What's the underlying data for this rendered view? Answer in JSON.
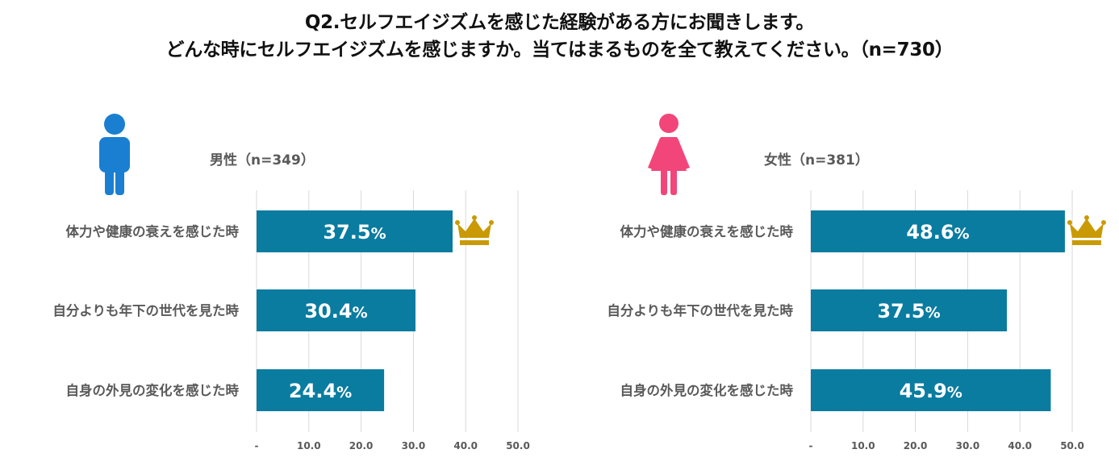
{
  "title": {
    "line1": "Q2.セルフエイジズムを感じた経験がある方にお聞きします。",
    "line2": "どんな時にセルフエイジズムを感じますか。当てはまるものを全て教えてください。（n=730）"
  },
  "colors": {
    "bar": "#0a7ca0",
    "male_icon": "#1a7fd0",
    "female_icon": "#f2467a",
    "crown": "#c99a06",
    "grid": "#d9d9d9",
    "text": "#595959"
  },
  "chart_data": [
    {
      "type": "bar",
      "orientation": "horizontal",
      "group_label": "男性（n=349）",
      "icon": "male-person-icon",
      "categories": [
        "体力や健康の衰えを感じた時",
        "自分よりも年下の世代を見た時",
        "自身の外見の変化を感じた時"
      ],
      "values": [
        37.5,
        30.4,
        24.4
      ],
      "value_suffix": "%",
      "xlim": [
        0,
        50
      ],
      "xticks": [
        "-",
        "10.0",
        "20.0",
        "30.0",
        "40.0",
        "50.0"
      ],
      "grid": true,
      "top_marker": "crown-icon"
    },
    {
      "type": "bar",
      "orientation": "horizontal",
      "group_label": "女性（n=381）",
      "icon": "female-person-icon",
      "categories": [
        "体力や健康の衰えを感じた時",
        "自分よりも年下の世代を見た時",
        "自身の外見の変化を感じた時"
      ],
      "values": [
        48.6,
        37.5,
        45.9
      ],
      "value_suffix": "%",
      "xlim": [
        0,
        50
      ],
      "xticks": [
        "-",
        "10.0",
        "20.0",
        "30.0",
        "40.0",
        "50.0"
      ],
      "grid": true,
      "top_marker": "crown-icon"
    }
  ]
}
